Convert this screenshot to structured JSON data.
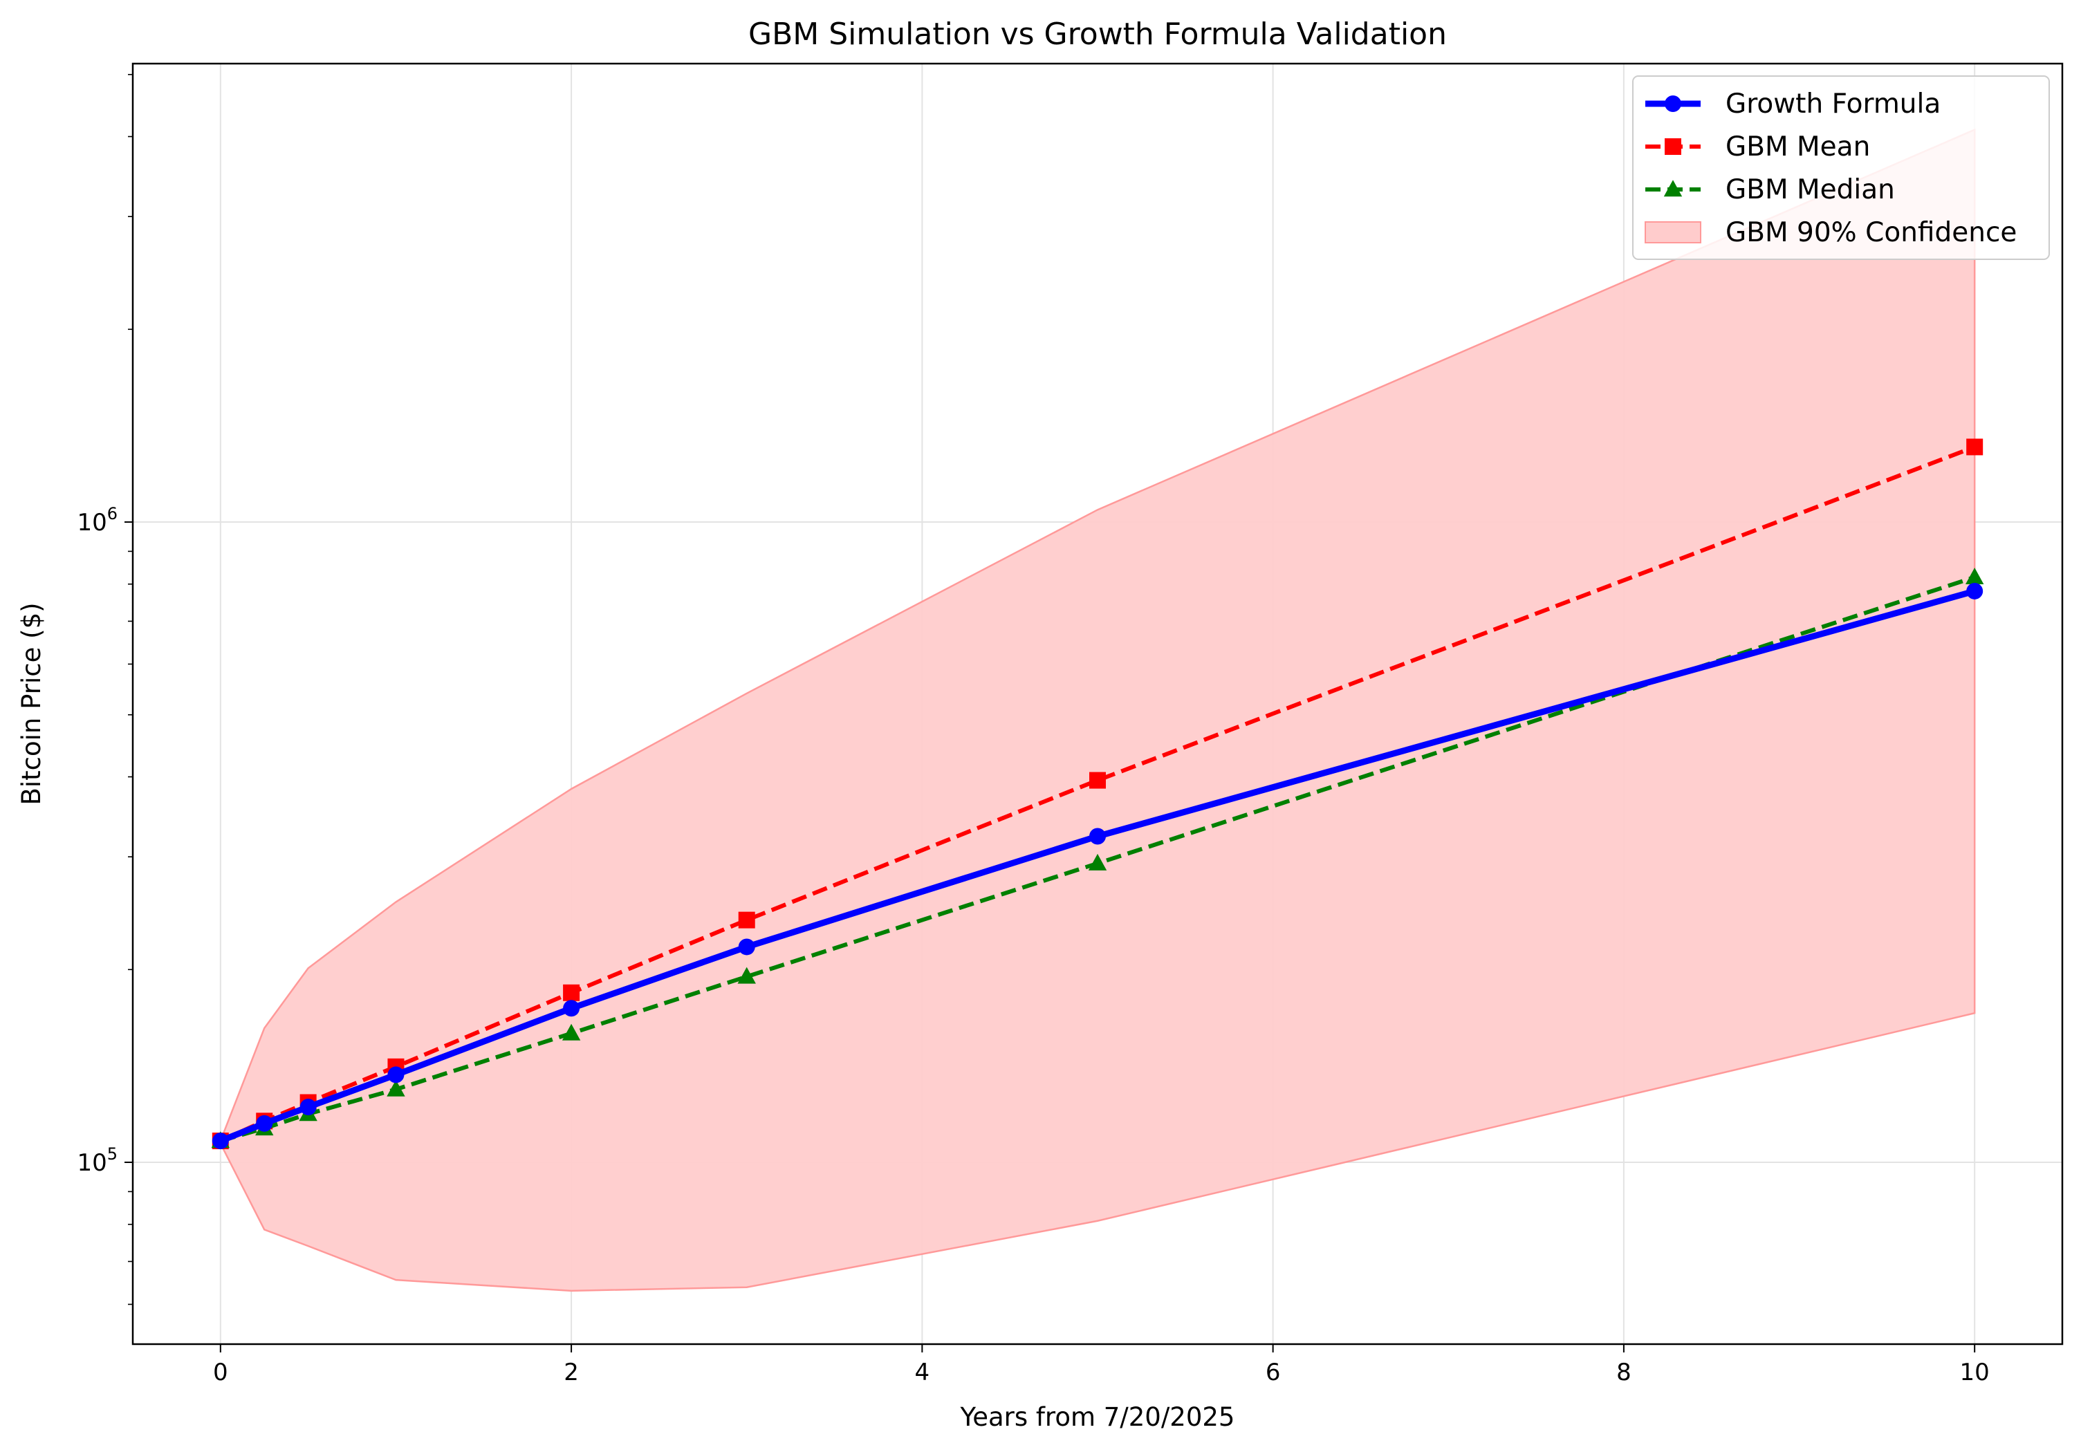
{
  "chart_data": {
    "type": "line",
    "title": "GBM Simulation vs Growth Formula Validation",
    "xlabel": "Years from 7/20/2025",
    "ylabel": "Bitcoin Price ($)",
    "yscale": "log",
    "xlim": [
      -0.5,
      10.5
    ],
    "ylim": [
      52000,
      5200000
    ],
    "xticks": [
      0,
      2,
      4,
      6,
      8,
      10
    ],
    "xtick_labels": [
      "0",
      "2",
      "4",
      "6",
      "8",
      "10"
    ],
    "yticks_major": [
      {
        "value": 100000,
        "base": "10",
        "exp": "5"
      },
      {
        "value": 1000000,
        "base": "10",
        "exp": "6"
      }
    ],
    "grid": true,
    "legend_position": "top-right",
    "x": [
      0,
      0.25,
      0.5,
      1,
      2,
      3,
      5,
      10
    ],
    "series": [
      {
        "name": "Growth Formula",
        "color": "#0000ff",
        "style": "solid",
        "marker": "circle",
        "values": [
          108000,
          115000,
          122000,
          137000,
          174000,
          217000,
          323000,
          780000
        ]
      },
      {
        "name": "GBM Mean",
        "color": "#ff0000",
        "style": "dashed",
        "marker": "square",
        "values": [
          108000,
          116000,
          124000,
          141000,
          184000,
          239000,
          395000,
          1310000
        ]
      },
      {
        "name": "GBM Median",
        "color": "#008000",
        "style": "dashed",
        "marker": "triangle",
        "values": [
          108000,
          113000,
          119000,
          130000,
          159000,
          195000,
          293000,
          820000
        ]
      }
    ],
    "band": {
      "name": "GBM 90% Confidence",
      "color": "#ffcccc",
      "edge": "#ff9999",
      "x": [
        0,
        0.25,
        0.5,
        1,
        2,
        3,
        5,
        10
      ],
      "lower": [
        107000,
        78500,
        74000,
        65500,
        63000,
        63800,
        81000,
        171000
      ],
      "upper": [
        108000,
        162000,
        201000,
        255000,
        383000,
        540000,
        1045000,
        4100000
      ]
    }
  }
}
